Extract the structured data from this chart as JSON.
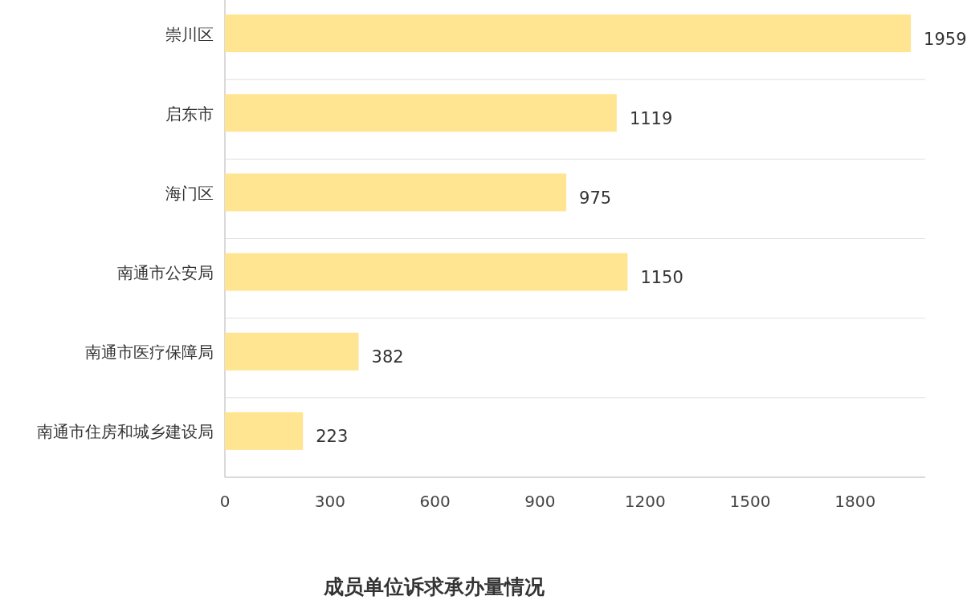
{
  "chart_data": {
    "type": "bar",
    "orientation": "horizontal",
    "title": "成员单位诉求承办量情况",
    "categories": [
      "崇川区",
      "启东市",
      "海门区",
      "南通市公安局",
      "南通市医疗保障局",
      "南通市住房和城乡建设局"
    ],
    "values": [
      1959,
      1119,
      975,
      1150,
      382,
      223
    ],
    "color": "#ffe591",
    "xlim": [
      0,
      2000
    ],
    "xticks": [
      0,
      300,
      600,
      900,
      1200,
      1500,
      1800
    ],
    "grid": "y",
    "data_labels": true
  }
}
